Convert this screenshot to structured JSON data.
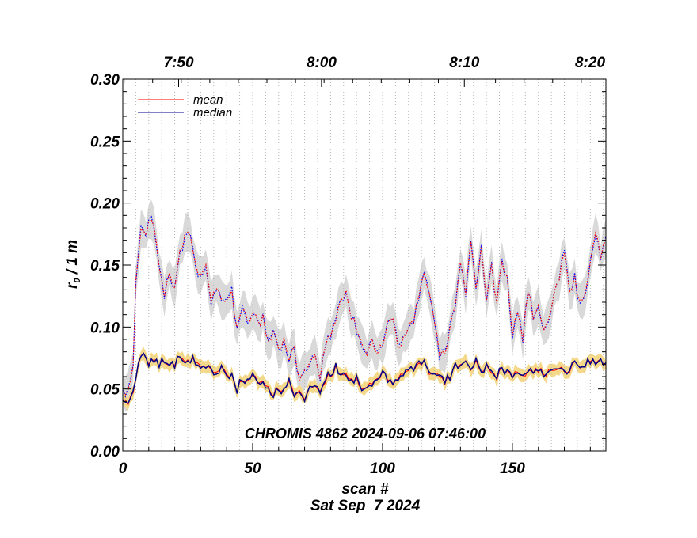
{
  "chart_data": {
    "type": "line",
    "annotation": "CHROMIS 4862 2024-09-06 07:46:00",
    "xlabel": "scan #",
    "date_label": "Sat Sep  7 2024",
    "ylabel_main": "r",
    "ylabel_sub": "0",
    "ylabel_rest": " / 1 m",
    "xlim": [
      0,
      186
    ],
    "ylim": [
      0,
      0.3
    ],
    "x_ticks": [
      0,
      50,
      100,
      150
    ],
    "y_ticks": [
      0.0,
      0.05,
      0.1,
      0.15,
      0.2,
      0.25,
      0.3
    ],
    "y_tick_labels": [
      "0.00",
      "0.05",
      "0.10",
      "0.15",
      "0.20",
      "0.25",
      "0.30"
    ],
    "top_axis": {
      "labels": [
        "7:50",
        "8:00",
        "8:10",
        "8:20"
      ],
      "positions": [
        21.5,
        76.5,
        131.5,
        186
      ]
    },
    "legend": [
      {
        "name": "mean",
        "color": "#ff0000"
      },
      {
        "name": "median",
        "color": "#00008b"
      }
    ],
    "colors": {
      "mean": "#ff0000",
      "median": "#00008b",
      "upper_median_dots": "#0000ff",
      "upper_band": "#d9d9d9",
      "lower_band": "#f5d98a"
    },
    "upper_series_control": [
      [
        0,
        0.047
      ],
      [
        2,
        0.05
      ],
      [
        4,
        0.07
      ],
      [
        5,
        0.14
      ],
      [
        7,
        0.18
      ],
      [
        9,
        0.175
      ],
      [
        11,
        0.188
      ],
      [
        12,
        0.18
      ],
      [
        14,
        0.15
      ],
      [
        16,
        0.125
      ],
      [
        18,
        0.142
      ],
      [
        20,
        0.128
      ],
      [
        22,
        0.16
      ],
      [
        24,
        0.175
      ],
      [
        26,
        0.17
      ],
      [
        28,
        0.15
      ],
      [
        30,
        0.14
      ],
      [
        32,
        0.15
      ],
      [
        34,
        0.122
      ],
      [
        36,
        0.132
      ],
      [
        38,
        0.125
      ],
      [
        40,
        0.118
      ],
      [
        42,
        0.127
      ],
      [
        44,
        0.095
      ],
      [
        46,
        0.118
      ],
      [
        48,
        0.105
      ],
      [
        50,
        0.112
      ],
      [
        52,
        0.102
      ],
      [
        54,
        0.108
      ],
      [
        56,
        0.085
      ],
      [
        58,
        0.095
      ],
      [
        60,
        0.08
      ],
      [
        62,
        0.09
      ],
      [
        64,
        0.075
      ],
      [
        66,
        0.08
      ],
      [
        68,
        0.06
      ],
      [
        70,
        0.068
      ],
      [
        72,
        0.07
      ],
      [
        74,
        0.078
      ],
      [
        76,
        0.06
      ],
      [
        78,
        0.085
      ],
      [
        80,
        0.095
      ],
      [
        82,
        0.102
      ],
      [
        84,
        0.125
      ],
      [
        86,
        0.13
      ],
      [
        88,
        0.11
      ],
      [
        90,
        0.098
      ],
      [
        92,
        0.085
      ],
      [
        94,
        0.078
      ],
      [
        96,
        0.09
      ],
      [
        98,
        0.08
      ],
      [
        100,
        0.087
      ],
      [
        102,
        0.102
      ],
      [
        104,
        0.108
      ],
      [
        106,
        0.082
      ],
      [
        108,
        0.09
      ],
      [
        110,
        0.1
      ],
      [
        112,
        0.105
      ],
      [
        114,
        0.125
      ],
      [
        116,
        0.14
      ],
      [
        118,
        0.13
      ],
      [
        120,
        0.105
      ],
      [
        122,
        0.08
      ],
      [
        124,
        0.075
      ],
      [
        126,
        0.098
      ],
      [
        128,
        0.12
      ],
      [
        130,
        0.15
      ],
      [
        132,
        0.13
      ],
      [
        134,
        0.17
      ],
      [
        136,
        0.128
      ],
      [
        138,
        0.165
      ],
      [
        140,
        0.122
      ],
      [
        142,
        0.148
      ],
      [
        144,
        0.12
      ],
      [
        146,
        0.155
      ],
      [
        148,
        0.138
      ],
      [
        150,
        0.095
      ],
      [
        152,
        0.112
      ],
      [
        154,
        0.09
      ],
      [
        156,
        0.13
      ],
      [
        158,
        0.108
      ],
      [
        160,
        0.118
      ],
      [
        162,
        0.095
      ],
      [
        164,
        0.11
      ],
      [
        166,
        0.125
      ],
      [
        168,
        0.14
      ],
      [
        170,
        0.162
      ],
      [
        172,
        0.13
      ],
      [
        174,
        0.14
      ],
      [
        176,
        0.118
      ],
      [
        178,
        0.125
      ],
      [
        180,
        0.15
      ],
      [
        182,
        0.175
      ],
      [
        184,
        0.158
      ],
      [
        186,
        0.17
      ]
    ],
    "lower_series_control": [
      [
        0,
        0.04
      ],
      [
        2,
        0.038
      ],
      [
        4,
        0.048
      ],
      [
        6,
        0.072
      ],
      [
        8,
        0.078
      ],
      [
        10,
        0.073
      ],
      [
        12,
        0.076
      ],
      [
        14,
        0.07
      ],
      [
        16,
        0.072
      ],
      [
        18,
        0.068
      ],
      [
        20,
        0.071
      ],
      [
        22,
        0.074
      ],
      [
        24,
        0.072
      ],
      [
        26,
        0.074
      ],
      [
        28,
        0.073
      ],
      [
        30,
        0.068
      ],
      [
        32,
        0.07
      ],
      [
        34,
        0.066
      ],
      [
        36,
        0.064
      ],
      [
        38,
        0.067
      ],
      [
        40,
        0.061
      ],
      [
        42,
        0.063
      ],
      [
        44,
        0.05
      ],
      [
        46,
        0.058
      ],
      [
        48,
        0.055
      ],
      [
        50,
        0.06
      ],
      [
        52,
        0.056
      ],
      [
        54,
        0.054
      ],
      [
        56,
        0.05
      ],
      [
        58,
        0.045
      ],
      [
        60,
        0.052
      ],
      [
        62,
        0.048
      ],
      [
        64,
        0.055
      ],
      [
        66,
        0.044
      ],
      [
        68,
        0.046
      ],
      [
        70,
        0.04
      ],
      [
        72,
        0.05
      ],
      [
        74,
        0.052
      ],
      [
        76,
        0.047
      ],
      [
        78,
        0.056
      ],
      [
        80,
        0.062
      ],
      [
        82,
        0.066
      ],
      [
        84,
        0.064
      ],
      [
        86,
        0.06
      ],
      [
        88,
        0.056
      ],
      [
        90,
        0.058
      ],
      [
        92,
        0.052
      ],
      [
        94,
        0.05
      ],
      [
        96,
        0.055
      ],
      [
        98,
        0.06
      ],
      [
        100,
        0.062
      ],
      [
        102,
        0.058
      ],
      [
        104,
        0.053
      ],
      [
        106,
        0.057
      ],
      [
        108,
        0.064
      ],
      [
        110,
        0.066
      ],
      [
        112,
        0.065
      ],
      [
        114,
        0.068
      ],
      [
        116,
        0.07
      ],
      [
        118,
        0.062
      ],
      [
        120,
        0.064
      ],
      [
        122,
        0.058
      ],
      [
        124,
        0.056
      ],
      [
        126,
        0.06
      ],
      [
        128,
        0.072
      ],
      [
        130,
        0.068
      ],
      [
        132,
        0.074
      ],
      [
        134,
        0.066
      ],
      [
        136,
        0.072
      ],
      [
        138,
        0.062
      ],
      [
        140,
        0.068
      ],
      [
        142,
        0.064
      ],
      [
        144,
        0.06
      ],
      [
        146,
        0.066
      ],
      [
        148,
        0.063
      ],
      [
        150,
        0.06
      ],
      [
        152,
        0.064
      ],
      [
        154,
        0.06
      ],
      [
        156,
        0.062
      ],
      [
        158,
        0.064
      ],
      [
        160,
        0.066
      ],
      [
        162,
        0.062
      ],
      [
        164,
        0.064
      ],
      [
        166,
        0.065
      ],
      [
        168,
        0.064
      ],
      [
        170,
        0.066
      ],
      [
        172,
        0.065
      ],
      [
        174,
        0.07
      ],
      [
        176,
        0.066
      ],
      [
        178,
        0.068
      ],
      [
        180,
        0.072
      ],
      [
        182,
        0.07
      ],
      [
        184,
        0.072
      ],
      [
        186,
        0.071
      ]
    ]
  }
}
